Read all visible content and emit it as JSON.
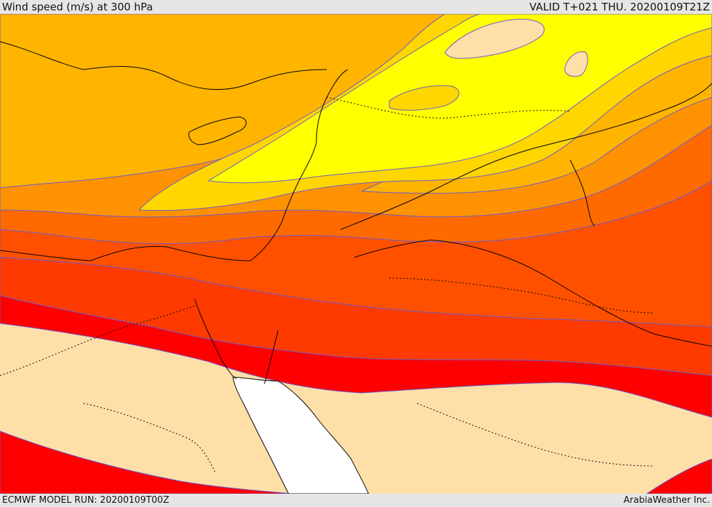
{
  "header": {
    "title": "Wind speed (m/s) at 300 hPa",
    "valid": "VALID T+021 THU. 20200109T21Z"
  },
  "footer": {
    "model_run": "ECMWF MODEL RUN: 20200109T00Z",
    "credit": "ArabiaWeather Inc."
  },
  "colors": {
    "lt10": "#ffdfa8",
    "c1": "#ff0000",
    "c2": "#ff3a00",
    "c3": "#ff5000",
    "c4": "#ff6a00",
    "c5": "#ff9200",
    "c6": "#ffb400",
    "c7": "#ffd600",
    "c8": "#ffff00",
    "sea": "#ffffff",
    "contour": "#6a5acd",
    "coast": "#000000"
  }
}
